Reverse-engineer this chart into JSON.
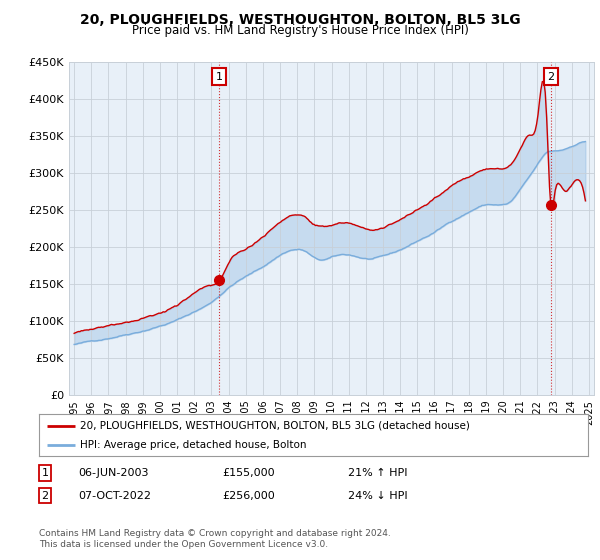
{
  "title": "20, PLOUGHFIELDS, WESTHOUGHTON, BOLTON, BL5 3LG",
  "subtitle": "Price paid vs. HM Land Registry's House Price Index (HPI)",
  "legend_label_red": "20, PLOUGHFIELDS, WESTHOUGHTON, BOLTON, BL5 3LG (detached house)",
  "legend_label_blue": "HPI: Average price, detached house, Bolton",
  "annotation1_date": "06-JUN-2003",
  "annotation1_price": "£155,000",
  "annotation1_hpi": "21% ↑ HPI",
  "annotation2_date": "07-OCT-2022",
  "annotation2_price": "£256,000",
  "annotation2_hpi": "24% ↓ HPI",
  "footnote": "Contains HM Land Registry data © Crown copyright and database right 2024.\nThis data is licensed under the Open Government Licence v3.0.",
  "ylim": [
    0,
    450000
  ],
  "ytick_vals": [
    0,
    50000,
    100000,
    150000,
    200000,
    250000,
    300000,
    350000,
    400000,
    450000
  ],
  "ytick_labels": [
    "£0",
    "£50K",
    "£100K",
    "£150K",
    "£200K",
    "£250K",
    "£300K",
    "£350K",
    "£400K",
    "£450K"
  ],
  "red_color": "#cc0000",
  "blue_color": "#7aaddc",
  "fill_color": "#ddeeff",
  "chart_bg": "#e8f0f8",
  "background_color": "#ffffff",
  "grid_color": "#c8d0d8",
  "sale1_year": 2003.45,
  "sale1_value": 155000,
  "sale2_year": 2022.78,
  "sale2_value": 256000
}
